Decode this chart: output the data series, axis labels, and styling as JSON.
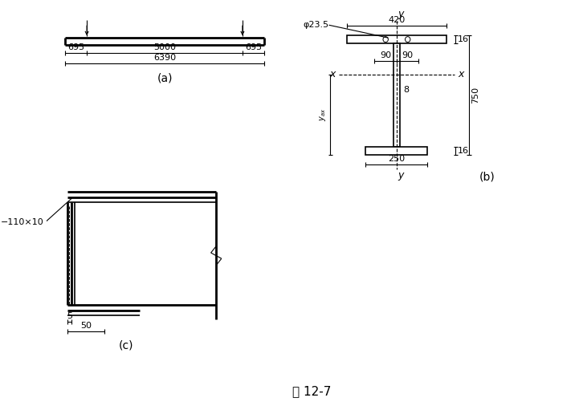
{
  "fig_width": 7.21,
  "fig_height": 5.11,
  "bg_color": "#ffffff",
  "line_color": "#000000",
  "caption": "图 12-7",
  "caption_fontsize": 11,
  "subfig_a_label": "(a)",
  "subfig_b_label": "(b)",
  "subfig_c_label": "(c)",
  "label_fontsize": 10,
  "dim_fontsize": 8,
  "axis_label_fontsize": 9,
  "lw_thick": 2.0,
  "lw_med": 1.2,
  "lw_thin": 0.8
}
